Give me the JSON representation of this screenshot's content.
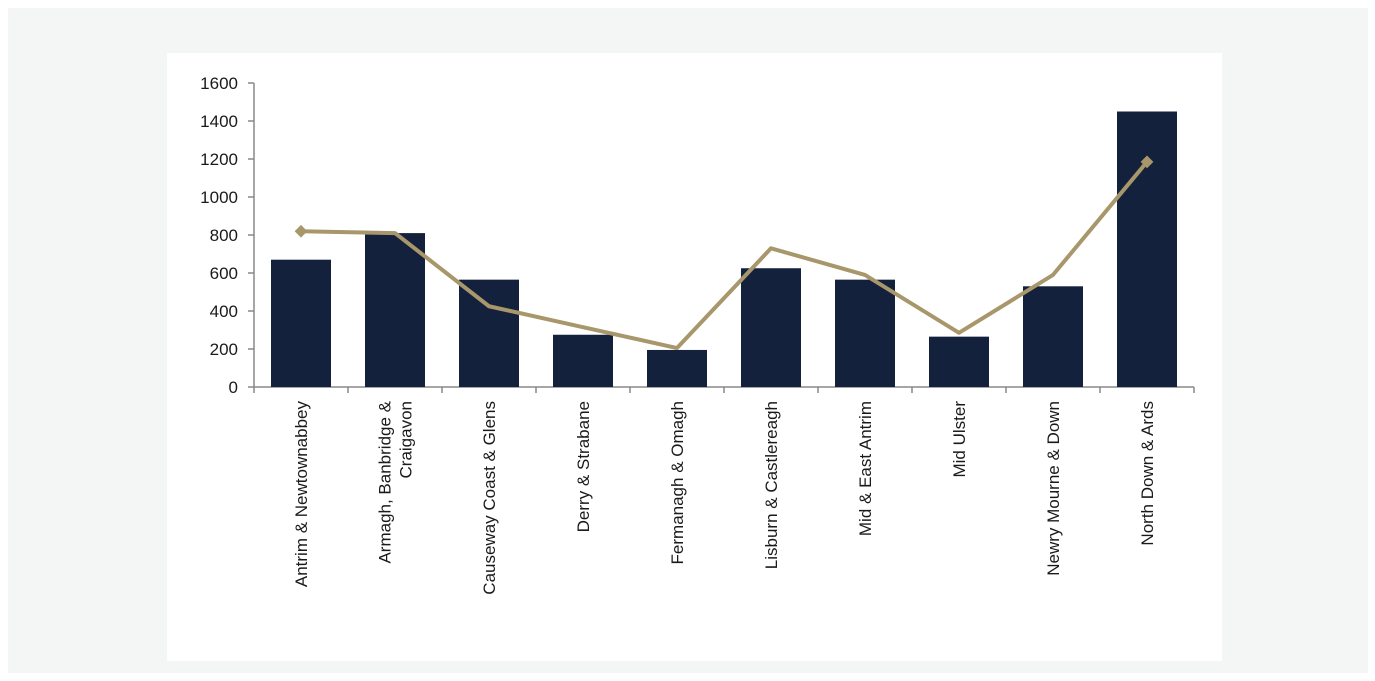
{
  "colors": {
    "bar": "#14213d",
    "line": "#a8976b",
    "axis": "#888888"
  },
  "chart_data": {
    "type": "bar",
    "categories": [
      "Antrim & Newtownabbey",
      "Armagh, Banbridge & Craigavon",
      "Causeway Coast & Glens",
      "Derry & Strabane",
      "Fermanagh & Omagh",
      "Lisburn & Castlereagh",
      "Mid & East Antrim",
      "Mid Ulster",
      "Newry Mourne & Down",
      "North Down & Ards"
    ],
    "category_lines": [
      [
        "Antrim & Newtownabbey"
      ],
      [
        "Armagh, Banbridge &",
        "Craigavon"
      ],
      [
        "Causeway Coast & Glens"
      ],
      [
        "Derry & Strabane"
      ],
      [
        "Fermanagh & Omagh"
      ],
      [
        "Lisburn & Castlereagh"
      ],
      [
        "Mid & East Antrim"
      ],
      [
        "Mid Ulster"
      ],
      [
        "Newry Mourne & Down"
      ],
      [
        "North Down & Ards"
      ]
    ],
    "series": [
      {
        "kind": "bar",
        "values": [
          670,
          810,
          565,
          275,
          195,
          625,
          565,
          265,
          530,
          1450
        ]
      },
      {
        "kind": "line",
        "values": [
          820,
          810,
          425,
          315,
          205,
          730,
          590,
          285,
          590,
          1185
        ]
      }
    ],
    "ylim": [
      0,
      1600
    ],
    "yticks": [
      0,
      200,
      400,
      600,
      800,
      1000,
      1200,
      1400,
      1600
    ],
    "xlabel": "",
    "ylabel": "",
    "title": "",
    "grid": false,
    "legend": false
  }
}
